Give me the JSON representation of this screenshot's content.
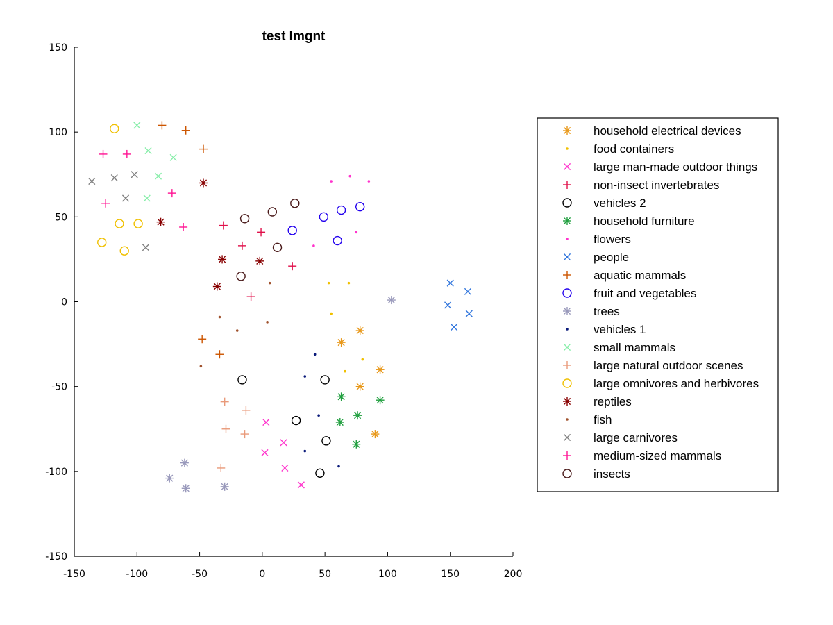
{
  "chart_data": {
    "type": "scatter",
    "title": "test Imgnt",
    "xlabel": "",
    "ylabel": "",
    "xlim": [
      -150,
      200
    ],
    "ylim": [
      -150,
      150
    ],
    "xticks": [
      -150,
      -100,
      -50,
      0,
      50,
      100,
      150,
      200
    ],
    "yticks": [
      -150,
      -100,
      -50,
      0,
      50,
      100,
      150
    ],
    "grid": false,
    "legend_position": "right",
    "series": [
      {
        "name": "household electrical devices",
        "marker": "asterisk",
        "color": "#e8981a",
        "points": [
          [
            78,
            -17
          ],
          [
            63,
            -24
          ],
          [
            94,
            -40
          ],
          [
            78,
            -50
          ],
          [
            90,
            -78
          ]
        ]
      },
      {
        "name": "food containers",
        "marker": "dot",
        "color": "#f0c000",
        "points": [
          [
            53,
            11
          ],
          [
            69,
            11
          ],
          [
            55,
            -7
          ],
          [
            80,
            -34
          ],
          [
            66,
            -41
          ]
        ]
      },
      {
        "name": "large man-made outdoor things",
        "marker": "x",
        "color": "#ff33cc",
        "points": [
          [
            3,
            -71
          ],
          [
            17,
            -83
          ],
          [
            2,
            -89
          ],
          [
            18,
            -98
          ],
          [
            31,
            -108
          ]
        ]
      },
      {
        "name": "non-insect invertebrates",
        "marker": "plus",
        "color": "#e0104a",
        "points": [
          [
            -31,
            45
          ],
          [
            -16,
            33
          ],
          [
            -1,
            41
          ],
          [
            24,
            21
          ],
          [
            -9,
            3
          ]
        ]
      },
      {
        "name": "vehicles 2",
        "marker": "circle",
        "color": "#000000",
        "points": [
          [
            -16,
            -46
          ],
          [
            50,
            -46
          ],
          [
            27,
            -70
          ],
          [
            51,
            -82
          ],
          [
            46,
            -101
          ]
        ]
      },
      {
        "name": "household furniture",
        "marker": "asterisk",
        "color": "#22a040",
        "points": [
          [
            63,
            -56
          ],
          [
            94,
            -58
          ],
          [
            62,
            -71
          ],
          [
            76,
            -67
          ],
          [
            75,
            -84
          ]
        ]
      },
      {
        "name": "flowers",
        "marker": "dot",
        "color": "#ff33cc",
        "points": [
          [
            55,
            71
          ],
          [
            70,
            74
          ],
          [
            85,
            71
          ],
          [
            41,
            33
          ],
          [
            75,
            41
          ]
        ]
      },
      {
        "name": "people",
        "marker": "x",
        "color": "#3377dd",
        "points": [
          [
            150,
            11
          ],
          [
            164,
            6
          ],
          [
            148,
            -2
          ],
          [
            165,
            -7
          ],
          [
            153,
            -15
          ]
        ]
      },
      {
        "name": "aquatic mammals",
        "marker": "plus",
        "color": "#cc5500",
        "points": [
          [
            -80,
            104
          ],
          [
            -61,
            101
          ],
          [
            -47,
            90
          ],
          [
            -48,
            -22
          ],
          [
            -34,
            -31
          ]
        ]
      },
      {
        "name": "fruit and vegetables",
        "marker": "circle",
        "color": "#2200ee",
        "points": [
          [
            24,
            42
          ],
          [
            49,
            50
          ],
          [
            63,
            54
          ],
          [
            78,
            56
          ],
          [
            60,
            36
          ]
        ]
      },
      {
        "name": "trees",
        "marker": "asterisk",
        "color": "#9999bb",
        "points": [
          [
            103,
            1
          ],
          [
            -62,
            -95
          ],
          [
            -74,
            -104
          ],
          [
            -61,
            -110
          ],
          [
            -30,
            -109
          ]
        ]
      },
      {
        "name": "vehicles 1",
        "marker": "dot",
        "color": "#0a1a7a",
        "points": [
          [
            42,
            -31
          ],
          [
            34,
            -44
          ],
          [
            45,
            -67
          ],
          [
            34,
            -88
          ],
          [
            61,
            -97
          ]
        ]
      },
      {
        "name": "small mammals",
        "marker": "x",
        "color": "#88eeaa",
        "points": [
          [
            -100,
            104
          ],
          [
            -91,
            89
          ],
          [
            -71,
            85
          ],
          [
            -83,
            74
          ],
          [
            -92,
            61
          ]
        ]
      },
      {
        "name": "large natural outdoor scenes",
        "marker": "plus",
        "color": "#e99a7a",
        "points": [
          [
            -30,
            -59
          ],
          [
            -13,
            -64
          ],
          [
            -29,
            -75
          ],
          [
            -14,
            -78
          ],
          [
            -33,
            -98
          ]
        ]
      },
      {
        "name": "large omnivores and herbivores",
        "marker": "circle",
        "color": "#f0c000",
        "points": [
          [
            -118,
            102
          ],
          [
            -114,
            46
          ],
          [
            -99,
            46
          ],
          [
            -128,
            35
          ],
          [
            -110,
            30
          ]
        ]
      },
      {
        "name": "reptiles",
        "marker": "asterisk",
        "color": "#880000",
        "points": [
          [
            -47,
            70
          ],
          [
            -81,
            47
          ],
          [
            -32,
            25
          ],
          [
            -2,
            24
          ],
          [
            -36,
            9
          ]
        ]
      },
      {
        "name": "fish",
        "marker": "dot",
        "color": "#a0522d",
        "points": [
          [
            6,
            11
          ],
          [
            -34,
            -9
          ],
          [
            4,
            -12
          ],
          [
            -20,
            -17
          ],
          [
            -49,
            -38
          ]
        ]
      },
      {
        "name": "large carnivores",
        "marker": "x",
        "color": "#808080",
        "points": [
          [
            -136,
            71
          ],
          [
            -118,
            73
          ],
          [
            -102,
            75
          ],
          [
            -109,
            61
          ],
          [
            -93,
            32
          ]
        ]
      },
      {
        "name": "medium-sized mammals",
        "marker": "plus",
        "color": "#ff1493",
        "points": [
          [
            -127,
            87
          ],
          [
            -108,
            87
          ],
          [
            -72,
            64
          ],
          [
            -125,
            58
          ],
          [
            -63,
            44
          ]
        ]
      },
      {
        "name": "insects",
        "marker": "circle",
        "color": "#4a1a1a",
        "points": [
          [
            -14,
            49
          ],
          [
            8,
            53
          ],
          [
            26,
            58
          ],
          [
            12,
            32
          ],
          [
            -17,
            15
          ]
        ]
      }
    ]
  }
}
